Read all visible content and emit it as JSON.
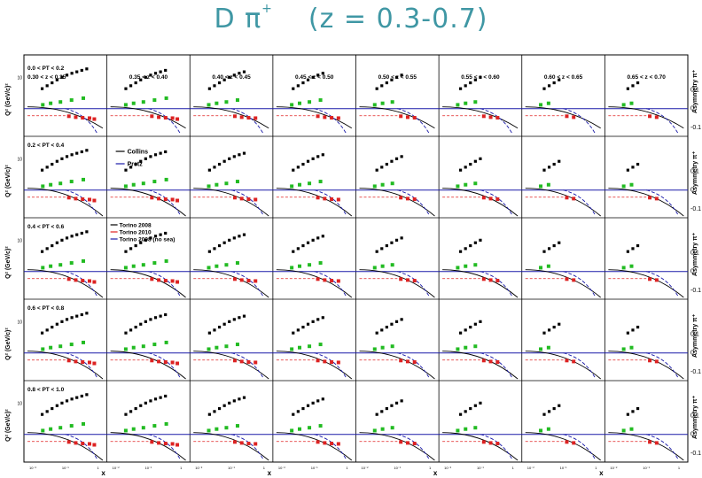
{
  "title": {
    "main": "D π",
    "sup": "+",
    "range": "(z = 0.3-0.7)"
  },
  "accent_color": "#3f97a4",
  "chart_data": {
    "type": "scatter",
    "description_axes": {
      "left_label": "Q² (GeV/c)²",
      "right_label": "Asymmetry π⁺",
      "x_label": "x",
      "asym_ticks": [
        "0.1",
        "0",
        "-0.1"
      ],
      "q2_tick": "10"
    },
    "columns": [
      "0.30 < z < 0.35",
      "0.35 < z < 0.40",
      "0.40 < z < 0.45",
      "0.45 < z < 0.50",
      "0.50 < z < 0.55",
      "0.55 < z < 0.60",
      "0.60 < z < 0.65",
      "0.65 < z < 0.70"
    ],
    "rows": [
      "0.0 < PT < 0.2",
      "0.2 < PT < 0.4",
      "0.4 < PT < 0.6",
      "0.6 < PT < 0.8",
      "0.8 < PT < 1.0"
    ],
    "legend_collins_pretz": [
      {
        "name": "Collins",
        "color": "#000000"
      },
      {
        "name": "Pretz",
        "color": "#1a1aa8"
      }
    ],
    "legend_torino": [
      {
        "name": "Torino 2008",
        "color": "#000000"
      },
      {
        "name": "Torino 2010",
        "color": "#e02020"
      },
      {
        "name": "Torino 2008 (no sea)",
        "color": "#1a1aa8"
      }
    ],
    "series_colors": {
      "q2": "#000000",
      "asym_mid": "#22bb22",
      "asym_low": "#dd2222"
    },
    "asym_range": [
      -0.12,
      0.12
    ],
    "x_log_ticks": [
      "10⁻²",
      "10⁻¹",
      "1"
    ],
    "q2_x": [
      0.18,
      0.26,
      0.34,
      0.42,
      0.5,
      0.58,
      0.66,
      0.74,
      0.82,
      0.9
    ],
    "q2_y": [
      0.3,
      0.38,
      0.46,
      0.54,
      0.61,
      0.67,
      0.72,
      0.76,
      0.8,
      0.84
    ],
    "green_x": [
      0.18,
      0.3,
      0.45,
      0.62,
      0.8
    ],
    "green_y": [
      0.02,
      0.028,
      0.035,
      0.045,
      0.055
    ],
    "red_x": [
      0.55,
      0.65,
      0.75,
      0.85,
      0.92
    ],
    "red_y": [
      -0.04,
      -0.045,
      -0.048,
      -0.05,
      -0.055
    ]
  }
}
